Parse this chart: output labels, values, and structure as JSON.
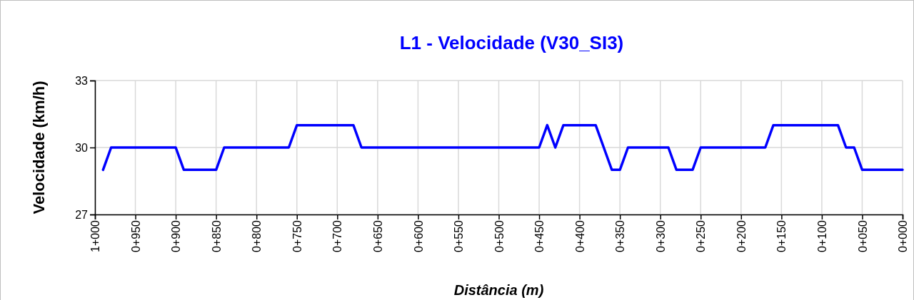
{
  "chart_data": {
    "type": "line",
    "title": "L1 - Velocidade (V30_SI3)",
    "xlabel": "Distância (m)",
    "ylabel": "Velocidade (km/h)",
    "categories": [
      "1+000",
      null,
      null,
      null,
      null,
      "0+950",
      null,
      null,
      null,
      null,
      "0+900",
      null,
      null,
      null,
      null,
      "0+850",
      null,
      null,
      null,
      null,
      "0+800",
      null,
      null,
      null,
      null,
      "0+750",
      null,
      null,
      null,
      null,
      "0+700",
      null,
      null,
      null,
      null,
      "0+650",
      null,
      null,
      null,
      null,
      "0+600",
      null,
      null,
      null,
      null,
      "0+550",
      null,
      null,
      null,
      null,
      "0+500",
      null,
      null,
      null,
      null,
      "0+450",
      null,
      null,
      null,
      null,
      "0+400",
      null,
      null,
      null,
      null,
      "0+350",
      null,
      null,
      null,
      null,
      "0+300",
      null,
      null,
      null,
      null,
      "0+250",
      null,
      null,
      null,
      null,
      "0+200",
      null,
      null,
      null,
      null,
      "0+150",
      null,
      null,
      null,
      null,
      "0+100",
      null,
      null,
      null,
      null,
      "0+050",
      null,
      null,
      null,
      null,
      "0+000"
    ],
    "series": [
      {
        "color": "#0000ff",
        "values": [
          null,
          29,
          30,
          30,
          30,
          30,
          30,
          30,
          30,
          30,
          30,
          29,
          29,
          29,
          29,
          29,
          30,
          30,
          30,
          30,
          30,
          30,
          30,
          30,
          30,
          31,
          31,
          31,
          31,
          31,
          31,
          31,
          31,
          30,
          30,
          30,
          30,
          30,
          30,
          30,
          30,
          30,
          30,
          30,
          30,
          30,
          30,
          30,
          30,
          30,
          30,
          30,
          30,
          30,
          30,
          30,
          31,
          30,
          31,
          31,
          31,
          31,
          31,
          30,
          29,
          29,
          30,
          30,
          30,
          30,
          30,
          30,
          29,
          29,
          29,
          30,
          30,
          30,
          30,
          30,
          30,
          30,
          30,
          30,
          31,
          31,
          31,
          31,
          31,
          31,
          31,
          31,
          31,
          30,
          30,
          29,
          29,
          29,
          29,
          29,
          29
        ]
      }
    ],
    "ylim": [
      27,
      33
    ],
    "yticks": [
      27,
      30,
      33
    ],
    "grid": true,
    "marker": "none",
    "line_style": "solid"
  }
}
